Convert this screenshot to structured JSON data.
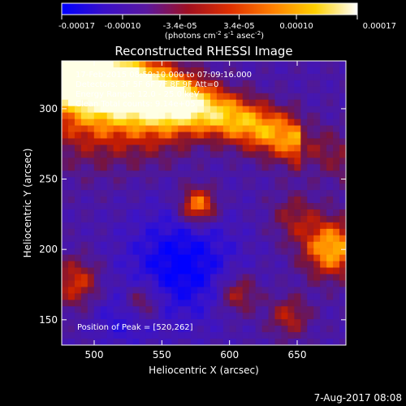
{
  "chart_data": {
    "type": "heatmap",
    "title": "Reconstructed RHESSI Image",
    "xlabel": "Heliocentric X (arcsec)",
    "ylabel": "Heliocentric Y (arcsec)",
    "xlim": [
      476,
      686
    ],
    "ylim": [
      132,
      334
    ],
    "xticks": [
      500,
      550,
      600,
      650
    ],
    "yticks": [
      150,
      200,
      250,
      300
    ],
    "x_tick_labels": [
      "500",
      "550",
      "600",
      "650"
    ],
    "y_tick_labels": [
      "150",
      "200",
      "250",
      "300"
    ],
    "colorbar": {
      "range": [
        -0.00017,
        0.00017
      ],
      "tick_values": [
        -0.00017,
        -0.0001,
        -3.4e-05,
        3.4e-05,
        0.0001,
        0.00017
      ],
      "tick_labels": [
        "-0.00017",
        "-0.00010",
        "-3.4e-05",
        "3.4e-05",
        "0.00010",
        "0.00017"
      ],
      "units_prefix": "(photons cm",
      "units_exp1": "-2",
      "units_mid": " s",
      "units_exp2": "-1",
      "units_mid2": " asec",
      "units_exp3": "-2",
      "units_suffix": ")",
      "colors": [
        "#0000ff",
        "#3a10c8",
        "#5a18a0",
        "#a01020",
        "#e03000",
        "#ff8000",
        "#ffd000",
        "#ffffff"
      ]
    },
    "annotations": {
      "line1": "17-Feb-2015 08:59:10.000 to 07:09:16.000",
      "line2": "Detectors: 3F 5F 6F 7F 8F 9F Att=0",
      "line3": "Energy Range: 12.0 - 25.0 keV",
      "line4": "Clean    Total counts: 9.14e+05",
      "peak": "Position of Peak = [520,262]"
    },
    "date_stamp": "7-Aug-2017 08:08"
  }
}
